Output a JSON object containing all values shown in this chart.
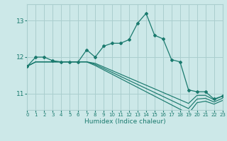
{
  "xlabel": "Humidex (Indice chaleur)",
  "xlim": [
    0,
    23
  ],
  "ylim": [
    10.55,
    13.45
  ],
  "yticks": [
    11,
    12,
    13
  ],
  "xticks": [
    0,
    1,
    2,
    3,
    4,
    5,
    6,
    7,
    8,
    9,
    10,
    11,
    12,
    13,
    14,
    15,
    16,
    17,
    18,
    19,
    20,
    21,
    22,
    23
  ],
  "bg_color": "#cce8e8",
  "grid_color": "#aacece",
  "line_color": "#1a7a6e",
  "series_main": [
    11.75,
    12.0,
    12.0,
    11.9,
    11.87,
    11.87,
    11.87,
    12.2,
    12.0,
    12.3,
    12.38,
    12.38,
    12.48,
    12.93,
    13.2,
    12.6,
    12.5,
    11.93,
    11.87,
    11.1,
    11.05,
    11.05,
    10.85,
    10.93
  ],
  "series_d1": [
    11.75,
    11.87,
    11.87,
    11.87,
    11.87,
    11.87,
    11.87,
    11.87,
    11.83,
    11.73,
    11.63,
    11.53,
    11.43,
    11.33,
    11.23,
    11.13,
    11.03,
    10.93,
    10.83,
    10.73,
    10.95,
    10.95,
    10.83,
    10.93
  ],
  "series_d2": [
    11.75,
    11.87,
    11.87,
    11.87,
    11.87,
    11.87,
    11.87,
    11.87,
    11.8,
    11.69,
    11.58,
    11.47,
    11.36,
    11.25,
    11.14,
    11.03,
    10.92,
    10.81,
    10.7,
    10.59,
    10.85,
    10.87,
    10.77,
    10.87
  ],
  "series_d3": [
    11.75,
    11.87,
    11.87,
    11.87,
    11.87,
    11.87,
    11.87,
    11.87,
    11.77,
    11.65,
    11.53,
    11.41,
    11.29,
    11.17,
    11.05,
    10.93,
    10.81,
    10.69,
    10.57,
    10.45,
    10.75,
    10.79,
    10.71,
    10.81
  ]
}
